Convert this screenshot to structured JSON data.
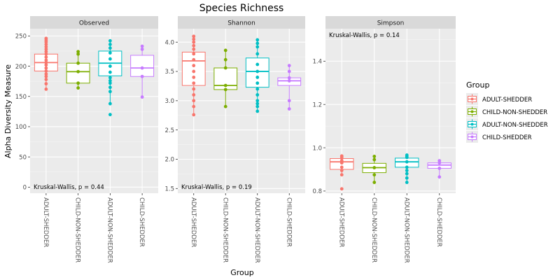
{
  "chart_data": {
    "type": "box",
    "title": "Species Richness",
    "xlabel": "Group",
    "ylabel": "Alpha Diversity Measure",
    "categories": [
      "ADULT-SHEDDER",
      "CHILD-NON-SHEDDER",
      "ADULT-NON-SHEDDER",
      "CHILD-SHEDDER"
    ],
    "legend": {
      "title": "Group",
      "position": "right",
      "entries": [
        "ADULT-SHEDDER",
        "CHILD-NON-SHEDDER",
        "ADULT-NON-SHEDDER",
        "CHILD-SHEDDER"
      ],
      "colors": [
        "#f8766d",
        "#7cae00",
        "#00bfc4",
        "#c77cff"
      ]
    },
    "grid": true,
    "panels": [
      {
        "strip": "Observed",
        "ylim": [
          -10,
          262
        ],
        "yticks": [
          0,
          50,
          100,
          150,
          200,
          250
        ],
        "annotation": "Kruskal-Wallis, p = 0.44",
        "annotation_position": "bottom-left",
        "boxes": [
          {
            "category": "ADULT-SHEDDER",
            "q1": 192,
            "median": 206,
            "q3": 220,
            "whisker_low": 162,
            "whisker_high": 246,
            "points": [
              246,
              243,
              240,
              236,
              232,
              228,
              224,
              220,
              215,
              210,
              206,
              202,
              197,
              192,
              187,
              183,
              178,
              171,
              162
            ]
          },
          {
            "category": "CHILD-NON-SHEDDER",
            "q1": 172,
            "median": 191,
            "q3": 205,
            "whisker_low": 164,
            "whisker_high": 224,
            "points": [
              224,
              220,
              205,
              191,
              172,
              164
            ]
          },
          {
            "category": "ADULT-NON-SHEDDER",
            "q1": 184,
            "median": 205,
            "q3": 225,
            "whisker_low": 138,
            "whisker_high": 242,
            "points": [
              242,
              236,
              230,
              222,
              212,
              200,
              190,
              181,
              176,
              172,
              165,
              158,
              138,
              120
            ]
          },
          {
            "category": "CHILD-SHEDDER",
            "q1": 183,
            "median": 197,
            "q3": 218,
            "whisker_low": 149,
            "whisker_high": 233,
            "points": [
              233,
              228,
              197,
              183,
              149
            ]
          }
        ]
      },
      {
        "strip": "Shannon",
        "ylim": [
          1.42,
          4.23
        ],
        "yticks": [
          1.5,
          2.0,
          2.5,
          3.0,
          3.5,
          4.0
        ],
        "annotation": "Kruskal-Wallis, p = 0.19",
        "annotation_position": "bottom-left",
        "boxes": [
          {
            "category": "ADULT-SHEDDER",
            "q1": 3.26,
            "median": 3.68,
            "q3": 3.83,
            "whisker_low": 2.76,
            "whisker_high": 4.1,
            "points": [
              4.1,
              4.05,
              4.0,
              3.94,
              3.88,
              3.8,
              3.7,
              3.6,
              3.5,
              3.4,
              3.3,
              3.2,
              3.1,
              3.0,
              2.9,
              2.76
            ]
          },
          {
            "category": "CHILD-NON-SHEDDER",
            "q1": 3.19,
            "median": 3.26,
            "q3": 3.56,
            "whisker_low": 2.9,
            "whisker_high": 3.86,
            "points": [
              3.86,
              3.7,
              3.56,
              3.26,
              3.19,
              2.9
            ]
          },
          {
            "category": "ADULT-NON-SHEDDER",
            "q1": 3.23,
            "median": 3.5,
            "q3": 3.73,
            "whisker_low": 2.82,
            "whisker_high": 4.04,
            "points": [
              4.04,
              3.98,
              3.92,
              3.8,
              3.62,
              3.5,
              3.4,
              3.3,
              3.2,
              3.1,
              3.0,
              2.95,
              2.9,
              2.82
            ]
          },
          {
            "category": "CHILD-SHEDDER",
            "q1": 3.26,
            "median": 3.34,
            "q3": 3.39,
            "whisker_low": 2.86,
            "whisker_high": 3.6,
            "points": [
              3.6,
              3.5,
              3.39,
              3.34,
              3.0,
              2.86
            ]
          }
        ]
      },
      {
        "strip": "Simpson",
        "ylim": [
          0.79,
          1.55
        ],
        "yticks": [
          0.8,
          1.0,
          1.2,
          1.4
        ],
        "annotation": "Kruskal-Wallis, p = 0.14",
        "annotation_position": "top-left",
        "boxes": [
          {
            "category": "ADULT-SHEDDER",
            "q1": 0.9,
            "median": 0.935,
            "q3": 0.95,
            "whisker_low": 0.875,
            "whisker_high": 0.962,
            "points": [
              0.962,
              0.958,
              0.952,
              0.94,
              0.93,
              0.91,
              0.895,
              0.875,
              0.81
            ]
          },
          {
            "category": "CHILD-NON-SHEDDER",
            "q1": 0.885,
            "median": 0.908,
            "q3": 0.928,
            "whisker_low": 0.84,
            "whisker_high": 0.96,
            "points": [
              0.96,
              0.945,
              0.908,
              0.875,
              0.84
            ]
          },
          {
            "category": "ADULT-NON-SHEDDER",
            "q1": 0.91,
            "median": 0.935,
            "q3": 0.952,
            "whisker_low": 0.84,
            "whisker_high": 0.966,
            "points": [
              0.966,
              0.96,
              0.955,
              0.935,
              0.91,
              0.895,
              0.88,
              0.86,
              0.84
            ]
          },
          {
            "category": "CHILD-SHEDDER",
            "q1": 0.905,
            "median": 0.92,
            "q3": 0.93,
            "whisker_low": 0.865,
            "whisker_high": 0.94,
            "points": [
              0.94,
              0.93,
              0.905,
              0.865
            ]
          }
        ]
      }
    ]
  }
}
